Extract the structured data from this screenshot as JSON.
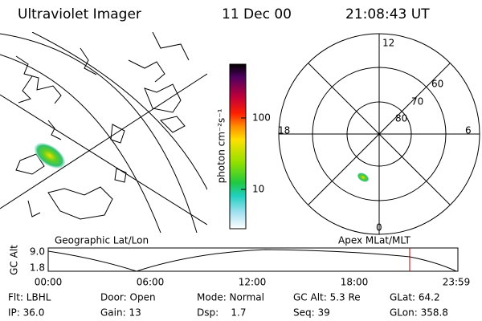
{
  "header": {
    "title": "Ultraviolet Imager",
    "date": "11 Dec 00",
    "time": "21:08:43 UT"
  },
  "colorbar": {
    "label": "photon cm⁻²s⁻¹",
    "ticks": [
      "100",
      "10"
    ]
  },
  "polar": {
    "mlt_labels": [
      "12",
      "18",
      "6",
      "0"
    ],
    "lat_labels": [
      "60",
      "70",
      "80"
    ]
  },
  "timeline": {
    "left_label": "Geographic Lat/Lon",
    "right_label": "Apex MLat/MLT",
    "y_title": "GC Alt",
    "yticks": [
      "9.0",
      "1.8"
    ],
    "xticks": [
      "00:00",
      "06:00",
      "12:00",
      "18:00",
      "23:59"
    ]
  },
  "info": {
    "rows": [
      [
        "Flt: LBHL",
        "Door: Open",
        "Mode: Normal",
        "GC Alt: 5.3 Re",
        "GLat: 64.2"
      ],
      [
        "IP: 36.0",
        "Gain: 13",
        "Dsp:    1.7",
        "Seq: 39",
        "GLon: 358.8"
      ]
    ]
  }
}
